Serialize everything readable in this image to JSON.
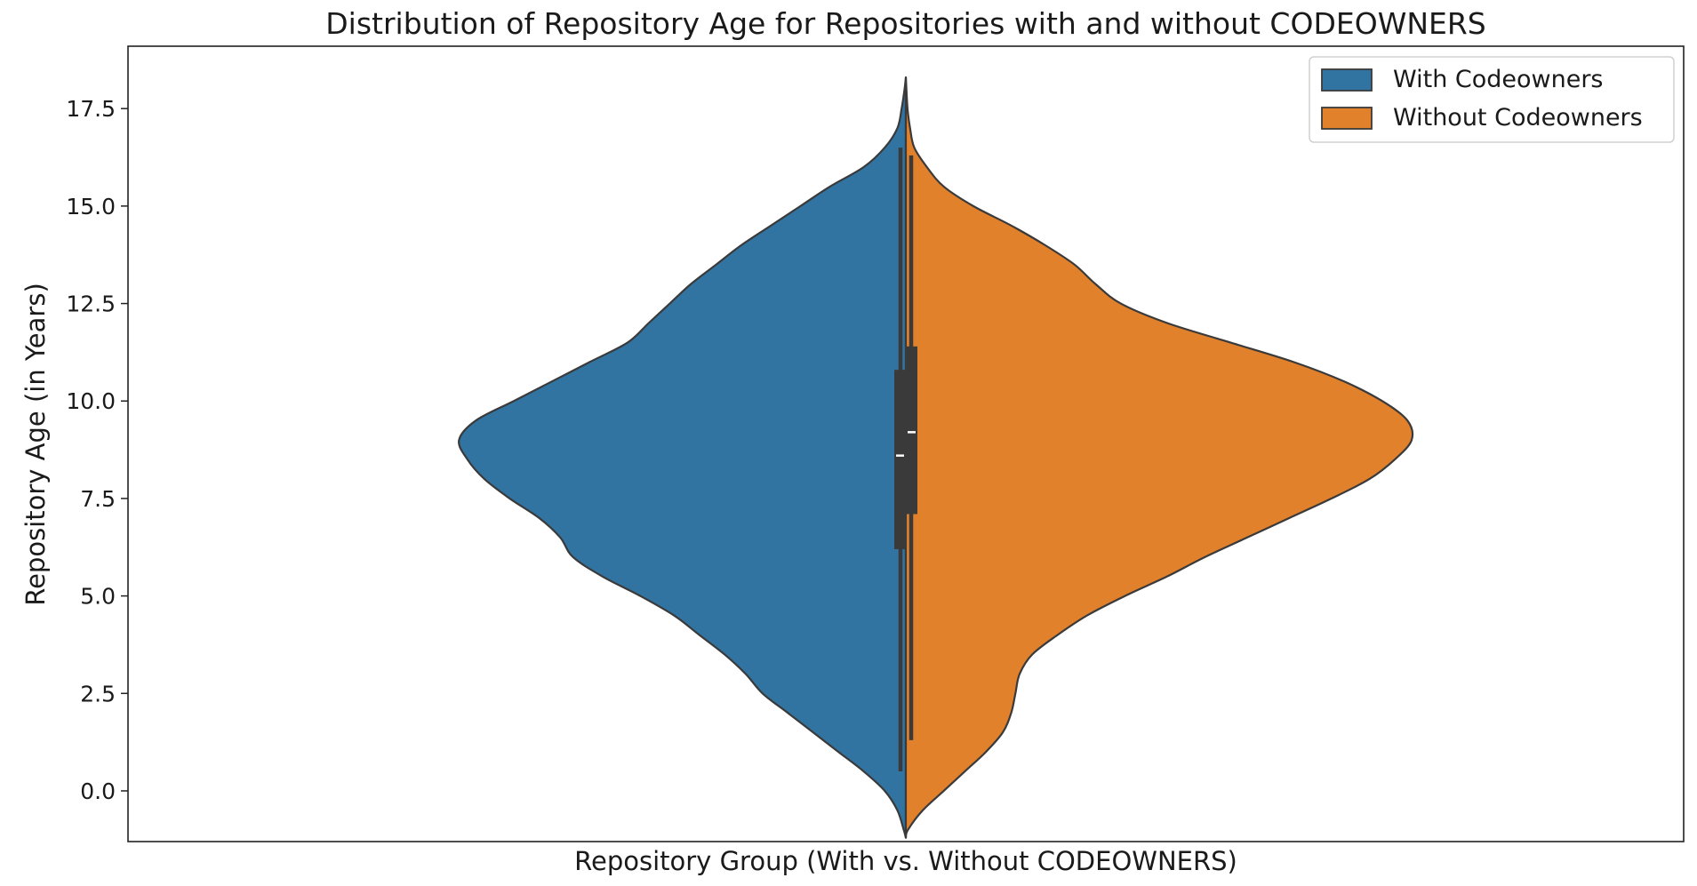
{
  "chart_data": {
    "type": "violin",
    "split": true,
    "title": "Distribution of Repository Age for Repositories with and without CODEOWNERS",
    "xlabel": "Repository Group (With vs. Without CODEOWNERS)",
    "ylabel": "Repository Age (in Years)",
    "ylim": [
      -1.3,
      19.1
    ],
    "yticks": [
      {
        "value": 0.0,
        "label": "0.0"
      },
      {
        "value": 2.5,
        "label": "2.5"
      },
      {
        "value": 5.0,
        "label": "5.0"
      },
      {
        "value": 7.5,
        "label": "7.5"
      },
      {
        "value": 10.0,
        "label": "10.0"
      },
      {
        "value": 12.5,
        "label": "12.5"
      },
      {
        "value": 15.0,
        "label": "15.0"
      },
      {
        "value": 17.5,
        "label": "17.5"
      }
    ],
    "grid": false,
    "legend": {
      "position": "top-right"
    },
    "series": [
      {
        "name": "With Codeowners",
        "color": "#3274a1",
        "side": "left",
        "box": {
          "min": 0.5,
          "q1": 6.2,
          "median": 8.6,
          "q3": 10.8,
          "max": 16.5
        },
        "density": [
          [
            -1.2,
            0.0
          ],
          [
            -1.0,
            0.005
          ],
          [
            -0.5,
            0.02
          ],
          [
            0.0,
            0.05
          ],
          [
            0.5,
            0.1
          ],
          [
            1.0,
            0.16
          ],
          [
            1.5,
            0.22
          ],
          [
            2.0,
            0.28
          ],
          [
            2.5,
            0.34
          ],
          [
            3.0,
            0.38
          ],
          [
            3.5,
            0.43
          ],
          [
            4.0,
            0.49
          ],
          [
            4.5,
            0.55
          ],
          [
            5.0,
            0.63
          ],
          [
            5.5,
            0.72
          ],
          [
            6.0,
            0.79
          ],
          [
            6.5,
            0.82
          ],
          [
            7.0,
            0.87
          ],
          [
            7.5,
            0.94
          ],
          [
            8.0,
            1.0
          ],
          [
            8.5,
            1.04
          ],
          [
            9.0,
            1.06
          ],
          [
            9.5,
            1.02
          ],
          [
            10.0,
            0.93
          ],
          [
            10.5,
            0.84
          ],
          [
            11.0,
            0.75
          ],
          [
            11.5,
            0.66
          ],
          [
            12.0,
            0.61
          ],
          [
            12.5,
            0.56
          ],
          [
            13.0,
            0.51
          ],
          [
            13.5,
            0.45
          ],
          [
            14.0,
            0.39
          ],
          [
            14.5,
            0.32
          ],
          [
            15.0,
            0.25
          ],
          [
            15.5,
            0.18
          ],
          [
            16.0,
            0.1
          ],
          [
            16.5,
            0.05
          ],
          [
            17.0,
            0.02
          ],
          [
            17.5,
            0.01
          ],
          [
            18.0,
            0.003
          ],
          [
            18.3,
            0.0
          ]
        ]
      },
      {
        "name": "Without Codeowners",
        "color": "#e1812c",
        "side": "right",
        "box": {
          "min": 1.3,
          "q1": 7.1,
          "median": 9.2,
          "q3": 11.4,
          "max": 16.3
        },
        "density": [
          [
            -1.2,
            0.0
          ],
          [
            -1.0,
            0.005
          ],
          [
            -0.5,
            0.04
          ],
          [
            0.0,
            0.09
          ],
          [
            0.5,
            0.14
          ],
          [
            1.0,
            0.19
          ],
          [
            1.5,
            0.23
          ],
          [
            2.0,
            0.25
          ],
          [
            2.5,
            0.26
          ],
          [
            3.0,
            0.27
          ],
          [
            3.5,
            0.3
          ],
          [
            4.0,
            0.36
          ],
          [
            4.5,
            0.43
          ],
          [
            5.0,
            0.52
          ],
          [
            5.5,
            0.62
          ],
          [
            6.0,
            0.71
          ],
          [
            6.5,
            0.81
          ],
          [
            7.0,
            0.91
          ],
          [
            7.5,
            1.01
          ],
          [
            8.0,
            1.1
          ],
          [
            8.5,
            1.16
          ],
          [
            9.0,
            1.2
          ],
          [
            9.5,
            1.19
          ],
          [
            10.0,
            1.13
          ],
          [
            10.5,
            1.04
          ],
          [
            11.0,
            0.92
          ],
          [
            11.5,
            0.77
          ],
          [
            12.0,
            0.62
          ],
          [
            12.5,
            0.51
          ],
          [
            13.0,
            0.45
          ],
          [
            13.5,
            0.4
          ],
          [
            14.0,
            0.33
          ],
          [
            14.5,
            0.25
          ],
          [
            15.0,
            0.16
          ],
          [
            15.5,
            0.09
          ],
          [
            16.0,
            0.05
          ],
          [
            16.5,
            0.02
          ],
          [
            17.0,
            0.01
          ],
          [
            17.5,
            0.004
          ],
          [
            18.3,
            0.0
          ]
        ]
      }
    ]
  }
}
